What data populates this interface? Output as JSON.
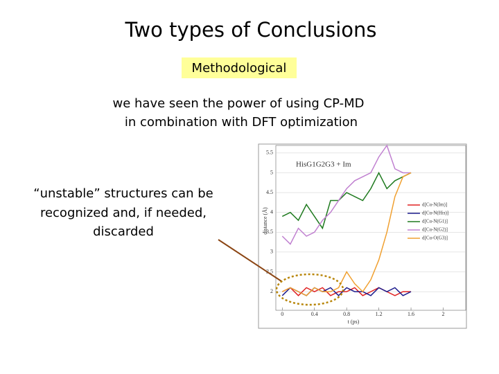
{
  "title": "Two types of Conclusions",
  "label": "Methodological",
  "statement": [
    "we have seen the power of using CP-MD",
    "in combination with DFT optimization"
  ],
  "note": [
    "“unstable” structures can be",
    "recognized and, if needed,",
    "discarded"
  ],
  "chart_data": {
    "type": "line",
    "title": "HisG1G2G3 + Im",
    "x_label": "t (ps)",
    "y_label": "distance (Å)",
    "x": [
      0,
      0.1,
      0.2,
      0.3,
      0.4,
      0.5,
      0.6,
      0.7,
      0.8,
      0.9,
      1.0,
      1.1,
      1.2,
      1.3,
      1.4,
      1.5,
      1.6
    ],
    "series": [
      {
        "name": "d[Cu-N(Im)]",
        "color": "#e02020",
        "values": [
          2.0,
          2.1,
          1.9,
          2.1,
          2.0,
          2.1,
          1.9,
          2.0,
          2.0,
          2.1,
          1.9,
          2.0,
          2.1,
          2.0,
          1.9,
          2.0,
          2.0
        ]
      },
      {
        "name": "d[Cu-N(His)]",
        "color": "#1a1a8c",
        "values": [
          1.9,
          2.1,
          2.0,
          1.9,
          2.1,
          2.0,
          2.1,
          1.9,
          2.1,
          2.0,
          2.0,
          1.9,
          2.1,
          2.0,
          2.1,
          1.9,
          2.0
        ]
      },
      {
        "name": "d[Cu-N(G1)]",
        "color": "#1f7a1f",
        "values": [
          3.9,
          4.0,
          3.8,
          4.2,
          3.9,
          3.6,
          4.3,
          4.3,
          4.5,
          4.4,
          4.3,
          4.6,
          5.0,
          4.6,
          4.8,
          4.9,
          5.0
        ]
      },
      {
        "name": "d[Cu-N(G2)]",
        "color": "#c080d0",
        "values": [
          3.4,
          3.2,
          3.6,
          3.4,
          3.5,
          3.8,
          4.0,
          4.3,
          4.6,
          4.8,
          4.9,
          5.0,
          5.4,
          5.7,
          5.1,
          5.0,
          5.0
        ]
      },
      {
        "name": "d[Cu-O(G3)]",
        "color": "#f0a030",
        "values": [
          2.0,
          2.1,
          2.0,
          1.9,
          2.1,
          2.0,
          2.0,
          2.1,
          2.5,
          2.2,
          2.0,
          2.3,
          2.8,
          3.5,
          4.4,
          4.9,
          5.0
        ]
      }
    ],
    "xlim": [
      -0.08,
      2.28
    ],
    "ylim": [
      1.53,
      5.69
    ],
    "xticks": [
      0,
      0.4,
      0.8,
      1.2,
      1.6,
      2
    ],
    "yticks": [
      2,
      2.5,
      3,
      3.5,
      4,
      4.5,
      5,
      5.5
    ]
  }
}
